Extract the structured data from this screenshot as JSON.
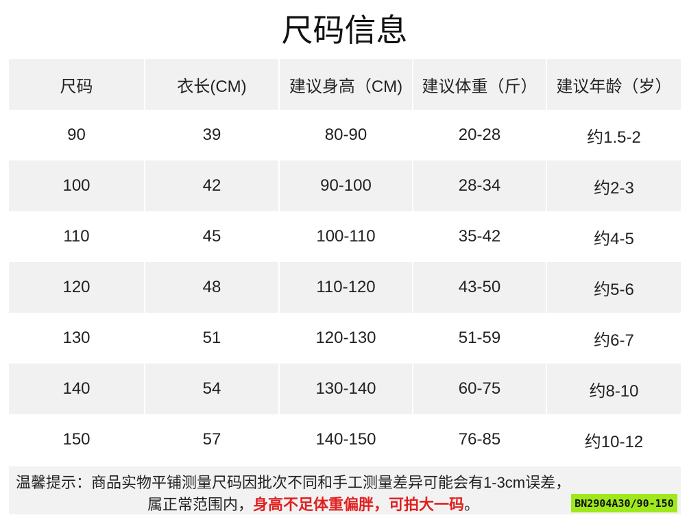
{
  "title": "尺码信息",
  "table": {
    "headers": [
      "尺码",
      "衣长(CM)",
      "建议身高（CM)",
      "建议体重（斤）",
      "建议年龄（岁）"
    ],
    "rows": [
      [
        "90",
        "39",
        "80-90",
        "20-28",
        "约1.5-2"
      ],
      [
        "100",
        "42",
        "90-100",
        "28-34",
        "约2-3"
      ],
      [
        "110",
        "45",
        "100-110",
        "35-42",
        "约4-5"
      ],
      [
        "120",
        "48",
        "110-120",
        "43-50",
        "约5-6"
      ],
      [
        "130",
        "51",
        "120-130",
        "51-59",
        "约6-7"
      ],
      [
        "140",
        "54",
        "130-140",
        "60-75",
        "约8-10"
      ],
      [
        "150",
        "57",
        "140-150",
        "76-85",
        "约10-12"
      ]
    ]
  },
  "note": {
    "line1": "温馨提示：商品实物平铺测量尺码因批次不同和手工测量差异可能会有1-3cm误差，",
    "line2_prefix": "属正常范围内，",
    "line2_highlight": "身高不足体重偏胖，可拍大一码",
    "line2_suffix": "。",
    "highlight_color": "#e02020"
  },
  "product_code": "BN2904A30/90-150",
  "product_code_color": "#9ee81c"
}
